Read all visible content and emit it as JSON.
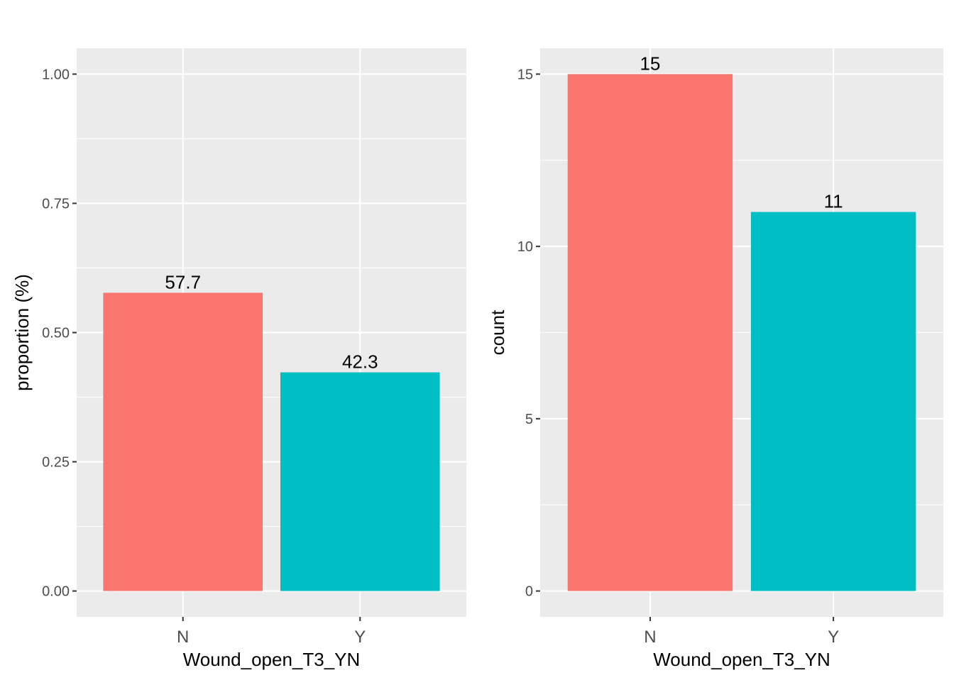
{
  "chart_data": [
    {
      "type": "bar",
      "categories": [
        "N",
        "Y"
      ],
      "values": [
        0.577,
        0.423
      ],
      "data_labels": [
        "57.7",
        "42.3"
      ],
      "xlabel": "Wound_open_T3_YN",
      "ylabel": "proportion (%)",
      "ylim": [
        -0.05,
        1.05
      ],
      "yticks": [
        0.0,
        0.25,
        0.5,
        0.75,
        1.0
      ],
      "ytick_labels": [
        "0.00",
        "0.25",
        "0.50",
        "0.75",
        "1.00"
      ],
      "colors": [
        "#F8766D",
        "#00BFC4"
      ],
      "grid": true,
      "legend": "none"
    },
    {
      "type": "bar",
      "categories": [
        "N",
        "Y"
      ],
      "values": [
        15,
        11
      ],
      "data_labels": [
        "15",
        "11"
      ],
      "xlabel": "Wound_open_T3_YN",
      "ylabel": "count",
      "ylim": [
        -0.75,
        15.75
      ],
      "yticks": [
        0,
        5,
        10,
        15
      ],
      "ytick_labels": [
        "0",
        "5",
        "10",
        "15"
      ],
      "colors": [
        "#F8766D",
        "#00BFC4"
      ],
      "grid": true,
      "legend": "none"
    }
  ]
}
